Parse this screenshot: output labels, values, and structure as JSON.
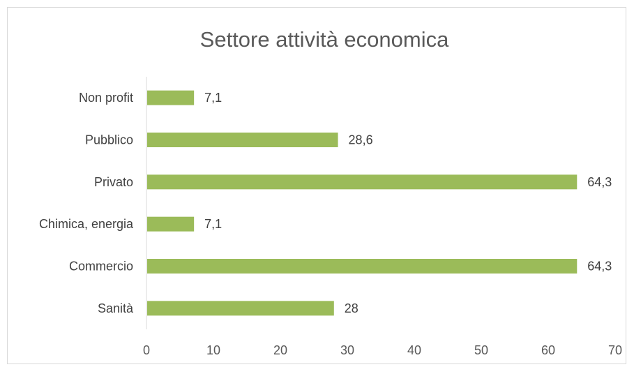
{
  "chart_data": {
    "type": "bar",
    "orientation": "horizontal",
    "title": "Settore attività economica",
    "categories": [
      "Non profit",
      "Pubblico",
      "Privato",
      "Chimica, energia",
      "Commercio",
      "Sanità"
    ],
    "values": [
      7.1,
      28.6,
      64.3,
      7.1,
      64.3,
      28
    ],
    "value_labels": [
      "7,1",
      "28,6",
      "64,3",
      "7,1",
      "64,3",
      "28"
    ],
    "xlim": [
      0,
      70
    ],
    "xticks": [
      0,
      10,
      20,
      30,
      40,
      50,
      60,
      70
    ],
    "xlabel": "",
    "ylabel": "",
    "grid": false,
    "legend": "none",
    "bar_color": "#9bbb59"
  }
}
